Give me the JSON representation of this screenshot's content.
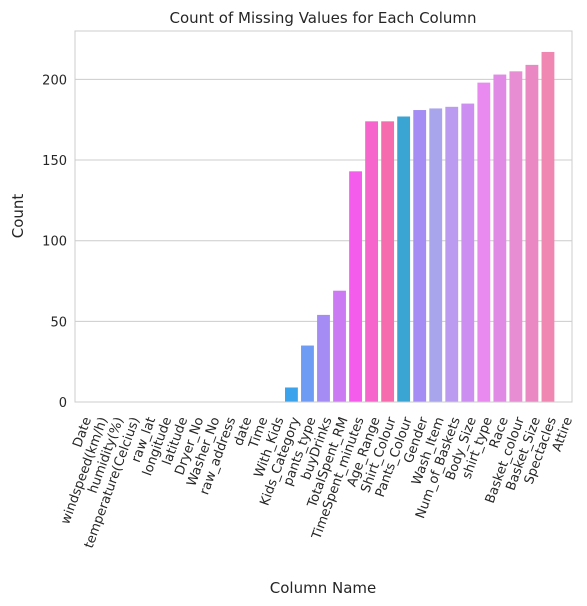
{
  "chart_data": {
    "type": "bar",
    "title": "Count of Missing Values for Each Column",
    "xlabel": "Column Name",
    "ylabel": "Count",
    "ylim": [
      0,
      230
    ],
    "yticks": [
      0,
      50,
      100,
      150,
      200
    ],
    "grid": "horizontal",
    "categories": [
      "Date",
      "windspeed(km/h)",
      "humidity(%)",
      "temperature(Celcius)",
      "raw_lat",
      "longitude",
      "latitude",
      "Dryer_No",
      "Washer_No",
      "raw_address",
      "date",
      "Time",
      "With_Kids",
      "Kids_Category",
      "pants_type",
      "buyDrinks",
      "TotalSpent_RM",
      "TimeSpent_minutes",
      "Age_Range",
      "Shirt_Colour",
      "Pants_Colour",
      "Gender",
      "Wash_Item",
      "Num_of_Baskets",
      "Body_Size",
      "shirt_type",
      "Race",
      "Basket_colour",
      "Basket_Size",
      "Spectacles",
      "Attire"
    ],
    "values": [
      0,
      0,
      0,
      0,
      0,
      0,
      0,
      0,
      0,
      0,
      0,
      0,
      0,
      9,
      35,
      54,
      69,
      143,
      174,
      174,
      177,
      181,
      182,
      183,
      185,
      198,
      203,
      205,
      209,
      217,
      0
    ],
    "colors": [
      "#f77189",
      "#f7754f",
      "#dc8932",
      "#c39532",
      "#ae9d31",
      "#97a431",
      "#77ab31",
      "#31b33e",
      "#33b07a",
      "#35ae93",
      "#36ada4",
      "#37abb4",
      "#38a9c5",
      "#3ba3ec",
      "#6e9bf4",
      "#a48cf4",
      "#cc7af4",
      "#f45deb",
      "#f565cc",
      "#f66bad",
      "#3aa4d3",
      "#a48cf4",
      "#a9a5ed",
      "#bb9bef",
      "#cc8ef0",
      "#e88af0",
      "#e08ae6",
      "#e78dd3",
      "#ea88c4",
      "#f087b2",
      "#f387a0"
    ]
  }
}
